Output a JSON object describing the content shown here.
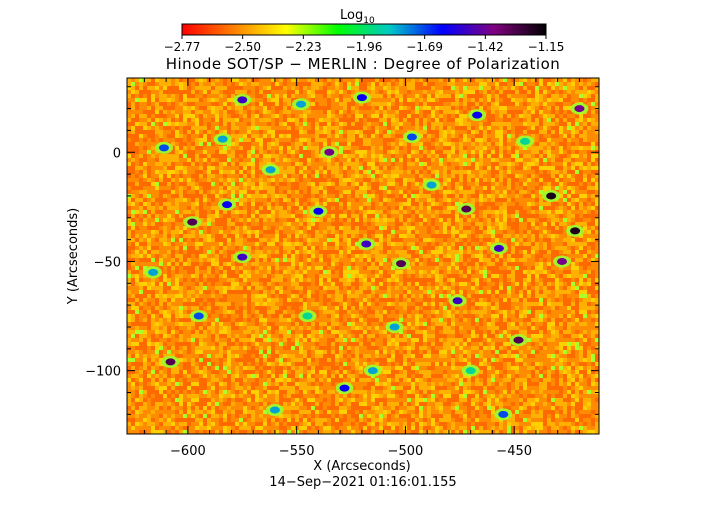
{
  "colorbar": {
    "label_main": "Log",
    "label_sub": "10",
    "ticks": [
      "−2.77",
      "−2.50",
      "−2.23",
      "−1.96",
      "−1.69",
      "−1.42",
      "−1.15"
    ],
    "range": [
      -2.77,
      -1.15
    ],
    "colors": [
      "#ff0000",
      "#ff8000",
      "#ffff00",
      "#00ff00",
      "#00c8c8",
      "#0000ff",
      "#800080",
      "#000000"
    ]
  },
  "chart_data": {
    "type": "heatmap",
    "title": "Hinode SOT/SP − MERLIN : Degree of Polarization",
    "xlabel": "X (Arcseconds)",
    "ylabel": "Y (Arcseconds)",
    "xlim": [
      -628,
      -411
    ],
    "ylim": [
      -129,
      34
    ],
    "xticks": [
      -600,
      -550,
      -500,
      -450
    ],
    "xtick_labels": [
      "−600",
      "−550",
      "−500",
      "−450"
    ],
    "yticks": [
      0,
      -50,
      -100
    ],
    "ytick_labels": [
      "0",
      "−50",
      "−100"
    ],
    "value_scale": "log10",
    "value_range": [
      -2.77,
      -1.15
    ],
    "background_colors": [
      "#ff6a00",
      "#ff8c00",
      "#ffb000",
      "#ffd000"
    ],
    "features": [
      {
        "x": -598,
        "y": -32,
        "value": -1.3
      },
      {
        "x": -582,
        "y": -24,
        "value": -1.6
      },
      {
        "x": -575,
        "y": -48,
        "value": -1.5
      },
      {
        "x": -540,
        "y": -27,
        "value": -1.6
      },
      {
        "x": -535,
        "y": 0,
        "value": -1.4
      },
      {
        "x": -562,
        "y": -8,
        "value": -1.8
      },
      {
        "x": -518,
        "y": -42,
        "value": -1.5
      },
      {
        "x": -502,
        "y": -51,
        "value": -1.3
      },
      {
        "x": -497,
        "y": 7,
        "value": -1.7
      },
      {
        "x": -476,
        "y": -68,
        "value": -1.5
      },
      {
        "x": -472,
        "y": -26,
        "value": -1.3
      },
      {
        "x": -467,
        "y": 17,
        "value": -1.6
      },
      {
        "x": -457,
        "y": -44,
        "value": -1.5
      },
      {
        "x": -448,
        "y": -86,
        "value": -1.3
      },
      {
        "x": -433,
        "y": -20,
        "value": -1.2
      },
      {
        "x": -422,
        "y": -36,
        "value": -1.2
      },
      {
        "x": -428,
        "y": -50,
        "value": -1.4
      },
      {
        "x": -420,
        "y": 20,
        "value": -1.4
      },
      {
        "x": -608,
        "y": -96,
        "value": -1.3
      },
      {
        "x": -584,
        "y": 6,
        "value": -1.8
      },
      {
        "x": -611,
        "y": 2,
        "value": -1.7
      },
      {
        "x": -575,
        "y": 24,
        "value": -1.5
      },
      {
        "x": -595,
        "y": -75,
        "value": -1.7
      },
      {
        "x": -515,
        "y": -100,
        "value": -1.8
      },
      {
        "x": -528,
        "y": -108,
        "value": -1.6
      },
      {
        "x": -455,
        "y": -120,
        "value": -1.7
      },
      {
        "x": -560,
        "y": -118,
        "value": -1.8
      },
      {
        "x": -488,
        "y": -15,
        "value": -1.8
      },
      {
        "x": -445,
        "y": 5,
        "value": -1.9
      },
      {
        "x": -616,
        "y": -55,
        "value": -1.8
      },
      {
        "x": -545,
        "y": -75,
        "value": -1.9
      },
      {
        "x": -505,
        "y": -80,
        "value": -1.8
      },
      {
        "x": -470,
        "y": -100,
        "value": -1.9
      },
      {
        "x": -520,
        "y": 25,
        "value": -1.6
      },
      {
        "x": -548,
        "y": 22,
        "value": -1.8
      }
    ]
  },
  "timestamp": "14−Sep−2021 01:16:01.155"
}
